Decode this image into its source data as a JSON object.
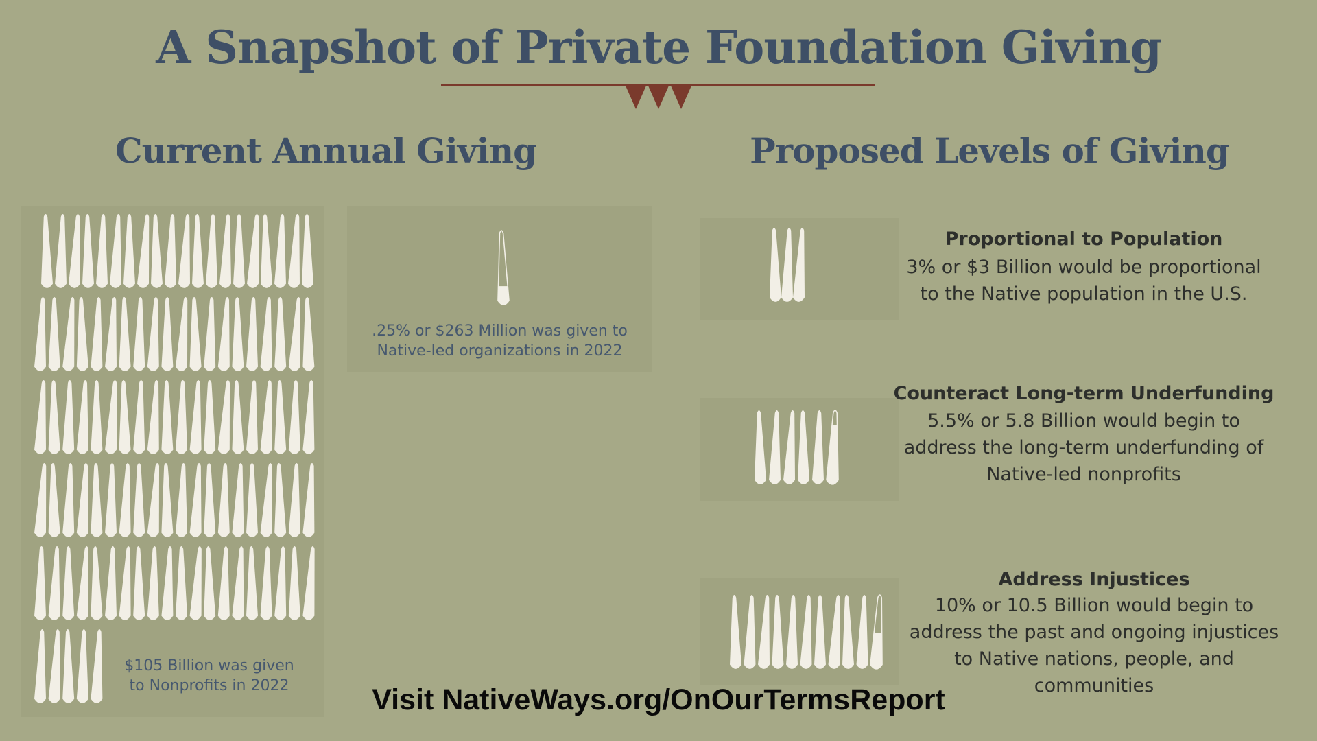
{
  "title": "A Snapshot of Private Foundation Giving",
  "colors": {
    "background": "#a6a987",
    "panel": "#a0a381",
    "feather": "#f2efe6",
    "title": "#3e4f66",
    "accent": "#7a3a2c"
  },
  "sections": {
    "current": {
      "heading": "Current Annual Giving",
      "total_caption": [
        "$105 Billion was given",
        "to Nonprofits in 2022"
      ],
      "native_caption": [
        ".25% or $263 Million was given to",
        "Native-led organizations in 2022"
      ]
    },
    "proposed": {
      "heading": "Proposed Levels of Giving",
      "levels": [
        {
          "title": "Proportional to Population",
          "lines": [
            "3% or $3 Billion would be proportional",
            "to the Native population in the U.S."
          ]
        },
        {
          "title": "Counteract Long-term Underfunding",
          "lines": [
            "5.5% or 5.8 Billion would begin to",
            "address the long-term underfunding of",
            "Native-led nonprofits"
          ]
        },
        {
          "title": "Address Injustices",
          "lines": [
            "10% or 10.5 Billion would begin to",
            "address the past and ongoing injustices",
            "to Native nations, people, and",
            "communities"
          ]
        }
      ]
    }
  },
  "footer": "Visit NativeWays.org/OnOurTermsReport",
  "chart_data": {
    "type": "pictograph",
    "unit_value": 1,
    "unit": "Billion",
    "icon": "feather-icon",
    "values": [
      {
        "label": "$105 Billion was given to Nonprofits in 2022",
        "value": 105
      },
      {
        "label": ".25% or $263 Million was given to Native-led organizations in 2022",
        "value": 0.263
      },
      {
        "label": "Proportional to Population",
        "value": 3
      },
      {
        "label": "Counteract Long-term Underfunding",
        "value": 5.8
      },
      {
        "label": "Address Injustices",
        "value": 10.5
      }
    ]
  }
}
